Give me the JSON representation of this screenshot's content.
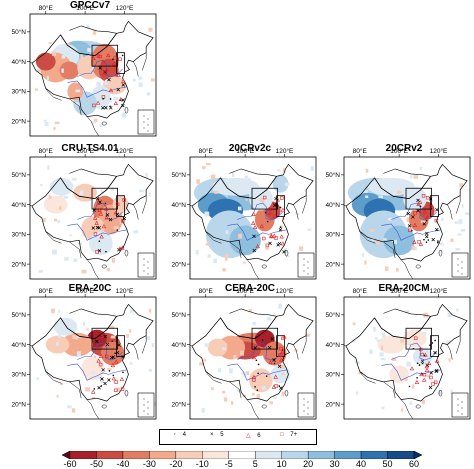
{
  "panels": [
    {
      "title": "GPCCv7",
      "lon_labels": [
        "80°E",
        "100°E",
        "120°E"
      ],
      "lat_labels": [
        "50°N",
        "40°N",
        "30°N",
        "20°N"
      ],
      "scheme": "gpcc"
    },
    {
      "title": "CRU-TS4.01",
      "lon_labels": [
        "80°E",
        "100°E",
        "120°E"
      ],
      "lat_labels": [
        "50°N",
        "40°N",
        "30°N",
        "20°N"
      ],
      "scheme": "cru"
    },
    {
      "title": "20CRv2c",
      "lon_labels": [
        "80°E",
        "100°E",
        "120°E"
      ],
      "lat_labels": [
        "50°N",
        "40°N",
        "30°N",
        "20°N"
      ],
      "scheme": "cr2c"
    },
    {
      "title": "20CRv2",
      "lon_labels": [
        "80°E",
        "100°E",
        "120°E"
      ],
      "lat_labels": [
        "50°N",
        "40°N",
        "30°N",
        "20°N"
      ],
      "scheme": "cr2"
    },
    {
      "title": "ERA-20C",
      "lon_labels": [
        "80°E",
        "100°E",
        "120°E"
      ],
      "lat_labels": [
        "50°N",
        "40°N",
        "30°N",
        "20°N"
      ],
      "scheme": "era"
    },
    {
      "title": "CERA-20C",
      "lon_labels": [
        "80°E",
        "100°E",
        "120°E"
      ],
      "lat_labels": [
        "50°N",
        "40°N",
        "30°N",
        "20°N"
      ],
      "scheme": "cera"
    },
    {
      "title": "ERA-20CM",
      "lon_labels": [
        "80°E",
        "100°E",
        "120°E"
      ],
      "lat_labels": [
        "50°N",
        "40°N",
        "30°N",
        "20°N"
      ],
      "scheme": "eracm"
    }
  ],
  "legend": [
    {
      "symbol": "·",
      "label": "4",
      "color": "#000000"
    },
    {
      "symbol": "×",
      "label": "5",
      "color": "#000000"
    },
    {
      "symbol": "△",
      "label": "6",
      "color": "#e0202a"
    },
    {
      "symbol": "□",
      "label": "7+",
      "color": "#e0202a"
    }
  ],
  "colorbar": {
    "labels": [
      "-60",
      "-50",
      "-40",
      "-30",
      "-20",
      "-10",
      "-5",
      "5",
      "10",
      "20",
      "30",
      "40",
      "50",
      "60"
    ],
    "colors": [
      "#67001f",
      "#a8202a",
      "#cc4c43",
      "#e27c62",
      "#f2a98c",
      "#f8cdb8",
      "#fbe6dc",
      "#ffffff",
      "#dce9f3",
      "#b9d6ea",
      "#8fbfdf",
      "#5c9dcb",
      "#2f72b2",
      "#164c8a",
      "#0b2f63"
    ]
  }
}
